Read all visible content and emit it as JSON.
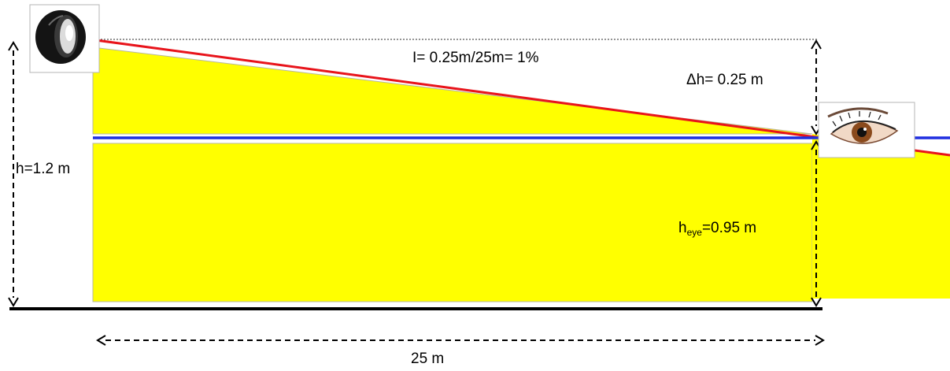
{
  "labels": {
    "inclination": "I= 0.25m/25m= 1%",
    "delta_h": "Δh= 0.25 m",
    "lamp_height": "h=1.2 m",
    "eye_height_prefix": "h",
    "eye_height_sub": "eye",
    "eye_height_value": "=0.95 m",
    "distance": "25 m"
  },
  "colors": {
    "ground_fill": "#ffff00",
    "beam_line": "#e8141b",
    "eye_level_line": "#1f2ee0",
    "ground_line": "#000000"
  },
  "icons": {
    "lamp": "headlamp-icon",
    "eye": "eye-icon"
  }
}
